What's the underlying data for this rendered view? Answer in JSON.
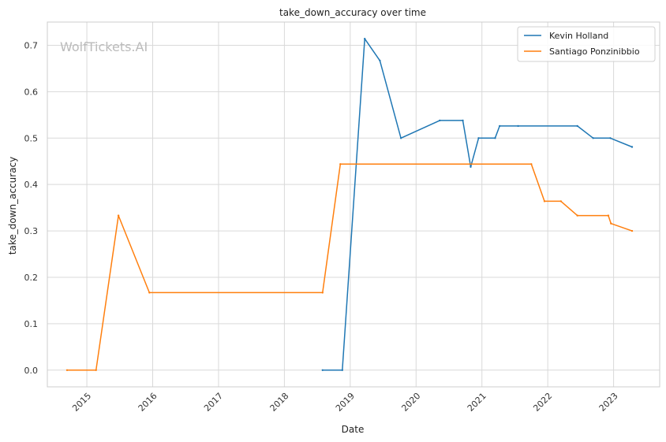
{
  "chart_data": {
    "type": "line",
    "title": "take_down_accuracy over time",
    "xlabel": "Date",
    "ylabel": "take_down_accuracy",
    "watermark": "WolfTickets.AI",
    "xlim": [
      2014.4,
      2023.7
    ],
    "ylim": [
      -0.036,
      0.75
    ],
    "x_ticks": [
      "2015",
      "2016",
      "2017",
      "2018",
      "2019",
      "2020",
      "2021",
      "2022",
      "2023"
    ],
    "y_ticks": [
      "0.0",
      "0.1",
      "0.2",
      "0.3",
      "0.4",
      "0.5",
      "0.6",
      "0.7"
    ],
    "grid": true,
    "legend_position": "top-right",
    "series": [
      {
        "name": "Kevin Holland",
        "color": "#1f77b4",
        "points": [
          [
            2018.58,
            0.0
          ],
          [
            2018.88,
            0.0
          ],
          [
            2019.22,
            0.714
          ],
          [
            2019.45,
            0.667
          ],
          [
            2019.77,
            0.5
          ],
          [
            2020.36,
            0.538
          ],
          [
            2020.71,
            0.538
          ],
          [
            2020.83,
            0.438
          ],
          [
            2020.95,
            0.5
          ],
          [
            2021.2,
            0.5
          ],
          [
            2021.27,
            0.526
          ],
          [
            2021.55,
            0.526
          ],
          [
            2022.45,
            0.526
          ],
          [
            2022.69,
            0.5
          ],
          [
            2022.95,
            0.5
          ],
          [
            2023.28,
            0.481
          ]
        ]
      },
      {
        "name": "Santiago Ponzinibbio",
        "color": "#ff7f0e",
        "points": [
          [
            2014.7,
            0.0
          ],
          [
            2015.14,
            0.0
          ],
          [
            2015.48,
            0.333
          ],
          [
            2015.95,
            0.167
          ],
          [
            2018.58,
            0.167
          ],
          [
            2018.85,
            0.444
          ],
          [
            2021.75,
            0.444
          ],
          [
            2021.95,
            0.364
          ],
          [
            2022.2,
            0.364
          ],
          [
            2022.45,
            0.333
          ],
          [
            2022.92,
            0.333
          ],
          [
            2022.96,
            0.316
          ],
          [
            2023.28,
            0.3
          ]
        ]
      }
    ]
  }
}
